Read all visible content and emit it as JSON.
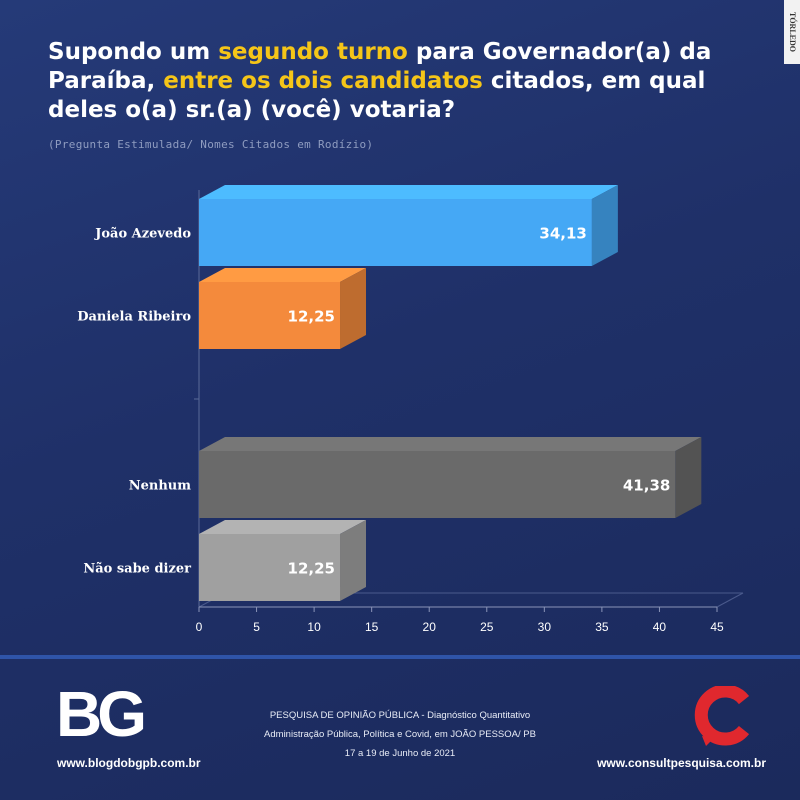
{
  "title": {
    "part1": "Supondo um ",
    "highlight1": "segundo turno",
    "part2": " para Governador(a) da Paraíba, ",
    "highlight2": "entre os dois candidatos",
    "part3": " citados, em qual deles o(a) sr.(a) (você) votaria?"
  },
  "subtitle": "(Pregunta Estimulada/ Nomes Citados em Rodízio)",
  "watermark": "TÓRLEDO",
  "colors": {
    "highlight": "#f5c518",
    "background": "#1f3068"
  },
  "chart_data": {
    "type": "bar",
    "orientation": "horizontal",
    "categories": [
      "João Azevedo",
      "Daniela Ribeiro",
      "Nenhum",
      "Não sabe dizer"
    ],
    "values": [
      34.13,
      12.25,
      41.38,
      12.25
    ],
    "value_labels": [
      "34,13",
      "12,25",
      "41,38",
      "12,25"
    ],
    "colors": [
      "#45a8f5",
      "#f48a3c",
      "#6a6a6a",
      "#a0a0a0"
    ],
    "xlim": [
      0,
      45
    ],
    "xticks": [
      0,
      5,
      10,
      15,
      20,
      25,
      30,
      35,
      40,
      45
    ],
    "grid": false,
    "legend": "none"
  },
  "footer": {
    "logo_text": "BG",
    "site_left": "www.blogdobgpb.com.br",
    "site_right": "www.consultpesquisa.com.br",
    "survey_line1": "PESQUISA DE OPINIÃO PÚBLICA - Diagnóstico Quantitativo",
    "survey_line2": "Administração Pública, Política e Covid, em JOÃO PESSOA/ PB",
    "survey_line3": "17 a 19 de Junho de 2021"
  }
}
